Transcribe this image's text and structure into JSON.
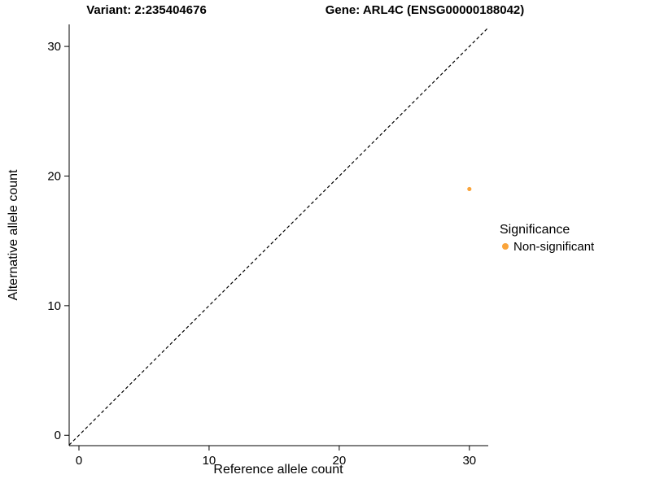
{
  "chart_data": {
    "type": "scatter",
    "title_left": "Variant: 2:235404676",
    "title_right": "Gene: ARL4C (ENSG00000188042)",
    "xlabel": "Reference allele count",
    "ylabel": "Alternative allele count",
    "xlim": [
      -0.75,
      31.45
    ],
    "ylim": [
      -0.8,
      31.7
    ],
    "xticks": [
      0,
      10,
      20,
      30
    ],
    "yticks": [
      0,
      10,
      20,
      30
    ],
    "grid": false,
    "points": [
      {
        "x": 30,
        "y": 19,
        "series": "Non-significant"
      }
    ],
    "identity_line": {
      "style": "dashed",
      "from": [
        -0.75,
        -0.75
      ],
      "to": [
        31.45,
        31.45
      ],
      "color": "#000000"
    },
    "legend": {
      "position": "right",
      "title": "Significance",
      "entries": [
        {
          "label": "Non-significant",
          "color": "#FAA43A"
        }
      ]
    },
    "colors": {
      "axis": "#000000",
      "background": "#ffffff"
    }
  }
}
